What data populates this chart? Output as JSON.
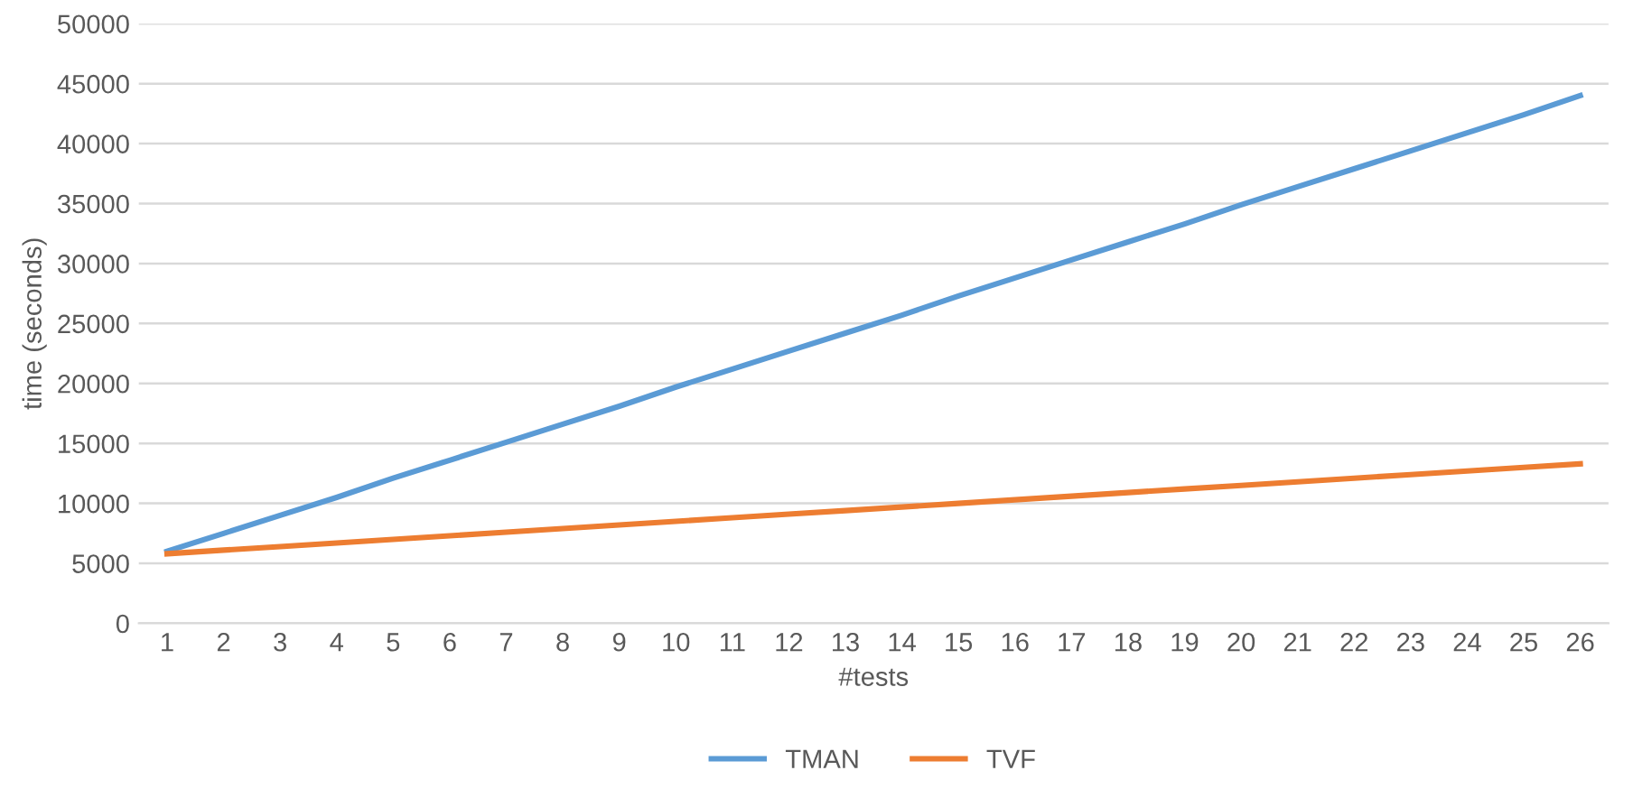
{
  "chart_data": {
    "type": "line",
    "xlabel": "#tests",
    "ylabel": "time (seconds)",
    "categories": [
      "1",
      "2",
      "3",
      "4",
      "5",
      "6",
      "7",
      "8",
      "9",
      "10",
      "11",
      "12",
      "13",
      "14",
      "15",
      "16",
      "17",
      "18",
      "19",
      "20",
      "21",
      "22",
      "23",
      "24",
      "25",
      "26"
    ],
    "series": [
      {
        "name": "TMAN",
        "color": "#5b9bd5",
        "values": [
          6000,
          7500,
          9000,
          10500,
          12100,
          13600,
          15100,
          16600,
          18100,
          19700,
          21200,
          22700,
          24200,
          25700,
          27300,
          28800,
          30300,
          31800,
          33300,
          34900,
          36400,
          37900,
          39400,
          40900,
          42400,
          44000
        ]
      },
      {
        "name": "TVF",
        "color": "#ed7d31",
        "values": [
          5800,
          6100,
          6400,
          6700,
          7000,
          7300,
          7600,
          7900,
          8200,
          8500,
          8800,
          9100,
          9400,
          9700,
          10000,
          10300,
          10600,
          10900,
          11200,
          11500,
          11800,
          12100,
          12400,
          12700,
          13000,
          13300
        ]
      }
    ],
    "ylim": [
      0,
      50000
    ],
    "yticks": [
      0,
      5000,
      10000,
      15000,
      20000,
      25000,
      30000,
      35000,
      40000,
      45000,
      50000
    ],
    "grid": "y",
    "legend": "bottom",
    "marker": "none",
    "line_style": "solid"
  }
}
